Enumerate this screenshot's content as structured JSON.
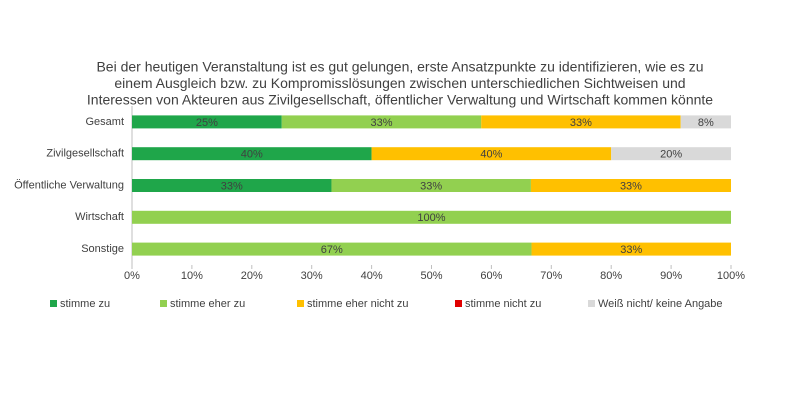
{
  "chart_data": {
    "type": "stacked-bar-horizontal",
    "title": [
      "Bei der heutigen Veranstaltung ist es gut gelungen, erste Ansatzpunkte zu identifizieren, wie es zu",
      "einem Ausgleich bzw. zu Kompromisslösungen zwischen unterschiedlichen Sichtweisen und",
      "Interessen von Akteuren aus Zivilgesellschaft, öffentlicher Verwaltung und Wirtschaft kommen könnte"
    ],
    "categories": [
      "Gesamt",
      "Zivilgesellschaft",
      "Öffentliche Verwaltung",
      "Wirtschaft",
      "Sonstige"
    ],
    "series": [
      {
        "name": "stimme zu",
        "color": "#1fa64a",
        "values": [
          25,
          40,
          33.3,
          0,
          0
        ],
        "value_labels": [
          "25%",
          "40%",
          "33%",
          null,
          null
        ]
      },
      {
        "name": "stimme eher zu",
        "color": "#92d050",
        "values": [
          33.3,
          0,
          33.3,
          100,
          66.7
        ],
        "value_labels": [
          "33%",
          null,
          "33%",
          "100%",
          "67%"
        ]
      },
      {
        "name": "stimme eher nicht zu",
        "color": "#ffc000",
        "values": [
          33.3,
          40,
          33.4,
          0,
          33.3
        ],
        "value_labels": [
          "33%",
          "40%",
          "33%",
          null,
          "33%"
        ]
      },
      {
        "name": "stimme nicht zu",
        "color": "#e00000",
        "values": [
          0,
          0,
          0,
          0,
          0
        ],
        "value_labels": [
          null,
          null,
          null,
          null,
          null
        ]
      },
      {
        "name": "Weiß nicht/ keine Angabe",
        "color": "#d9d9d9",
        "values": [
          8.4,
          20,
          0,
          0,
          0
        ],
        "value_labels": [
          "8%",
          "20%",
          null,
          null,
          null
        ]
      }
    ],
    "xlim": [
      0,
      100
    ],
    "xticks": [
      {
        "value": 0,
        "label": "0%"
      },
      {
        "value": 10,
        "label": "10%"
      },
      {
        "value": 20,
        "label": "20%"
      },
      {
        "value": 30,
        "label": "30%"
      },
      {
        "value": 40,
        "label": "40%"
      },
      {
        "value": 50,
        "label": "50%"
      },
      {
        "value": 60,
        "label": "60%"
      },
      {
        "value": 70,
        "label": "70%"
      },
      {
        "value": 80,
        "label": "80%"
      },
      {
        "value": 90,
        "label": "90%"
      },
      {
        "value": 100,
        "label": "100%"
      }
    ],
    "legend": "bottom"
  }
}
